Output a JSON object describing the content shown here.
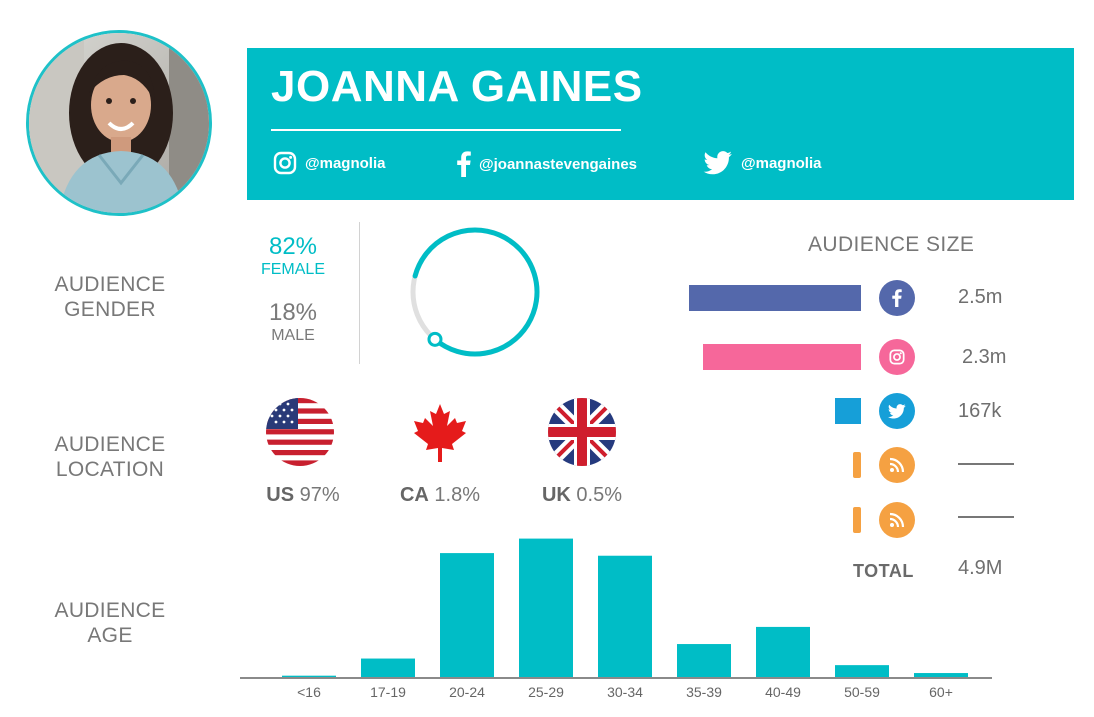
{
  "profile": {
    "name": "JOANNA GAINES",
    "handles": {
      "instagram": "@magnolia",
      "facebook": "@joannastevengaines",
      "twitter": "@magnolia"
    }
  },
  "labels": {
    "gender": [
      "AUDIENCE",
      "GENDER"
    ],
    "location": [
      "AUDIENCE",
      "LOCATION"
    ],
    "age": [
      "AUDIENCE",
      "AGE"
    ]
  },
  "gender": {
    "female_pct": "82%",
    "female_label": "FEMALE",
    "male_pct": "18%",
    "male_label": "MALE",
    "female_fraction": 0.82
  },
  "location": [
    {
      "code": "US",
      "pct": "97%"
    },
    {
      "code": "CA",
      "pct": "1.8%"
    },
    {
      "code": "UK",
      "pct": "0.5%"
    }
  ],
  "audience_size": {
    "title": "AUDIENCE SIZE",
    "rows": [
      {
        "network": "facebook-icon",
        "value": "2.5m",
        "color": "#5468ab",
        "amount": 2.5
      },
      {
        "network": "instagram-icon",
        "value": "2.3m",
        "color": "#f6679a",
        "amount": 2.3
      },
      {
        "network": "twitter-icon",
        "value": "167k",
        "color": "#169fd8",
        "amount": 0.167
      },
      {
        "network": "rss-icon",
        "value": "",
        "color": "#f5a142",
        "amount": 0
      },
      {
        "network": "rss-icon",
        "value": "",
        "color": "#f5a142",
        "amount": 0
      }
    ],
    "total_label": "TOTAL",
    "total_value": "4.9M"
  },
  "colors": {
    "accent": "#00bdc6",
    "facebook": "#5468ab",
    "instagram": "#f6679a",
    "twitter": "#169fd8",
    "rss": "#f5a142"
  },
  "chart_data": {
    "type": "bar",
    "categories": [
      "<16",
      "17-19",
      "20-24",
      "25-29",
      "30-34",
      "35-39",
      "40-49",
      "50-59",
      "60+"
    ],
    "values": [
      1,
      14,
      94,
      105,
      92,
      25,
      38,
      9,
      3
    ],
    "ylim": [
      0,
      110
    ],
    "title": "",
    "xlabel": "",
    "ylabel": ""
  }
}
